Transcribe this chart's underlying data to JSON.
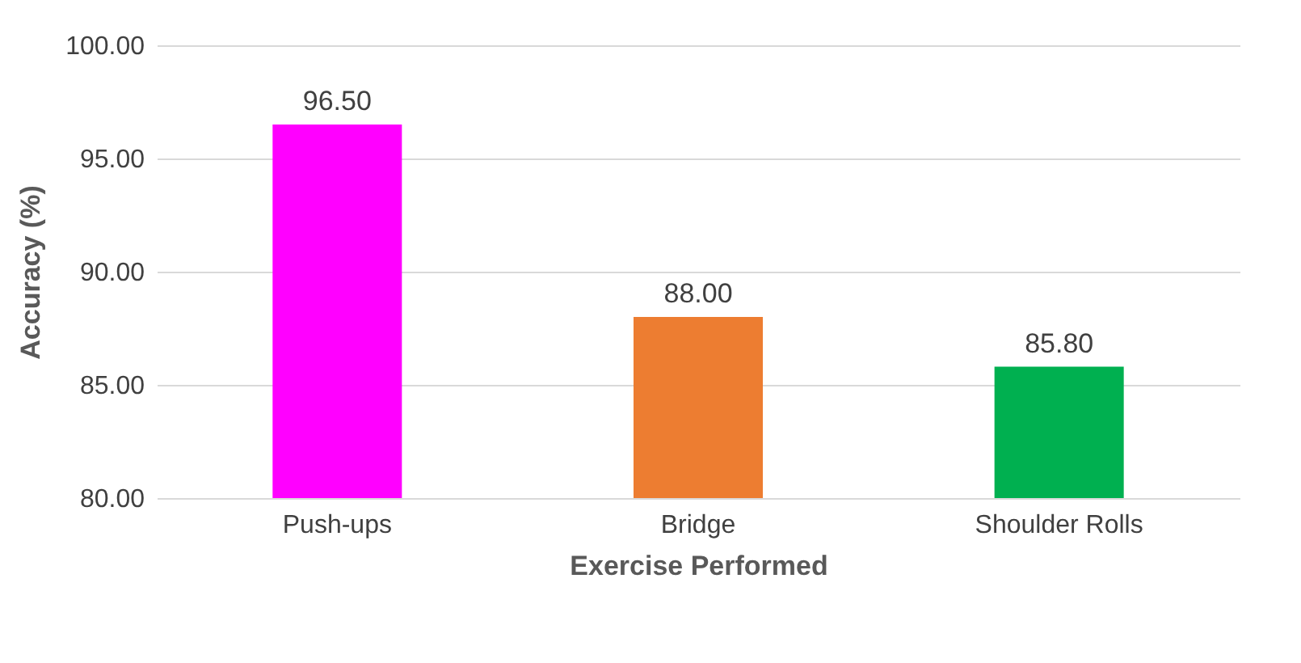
{
  "chart_data": {
    "type": "bar",
    "xlabel": "Exercise Performed",
    "ylabel": "Accuracy (%)",
    "categories": [
      "Push-ups",
      "Bridge",
      "Shoulder Rolls"
    ],
    "values": [
      96.5,
      88.0,
      85.8
    ],
    "colors": [
      "#ff00ff",
      "#ed7d31",
      "#00b050"
    ],
    "value_labels": [
      "96.50",
      "88.00",
      "85.80"
    ],
    "ylim": [
      80,
      100
    ],
    "yticks": [
      {
        "value": 80,
        "label": "80.00"
      },
      {
        "value": 85,
        "label": "85.00"
      },
      {
        "value": 90,
        "label": "90.00"
      },
      {
        "value": 95,
        "label": "95.00"
      },
      {
        "value": 100,
        "label": "100.00"
      }
    ],
    "grid": "y"
  }
}
